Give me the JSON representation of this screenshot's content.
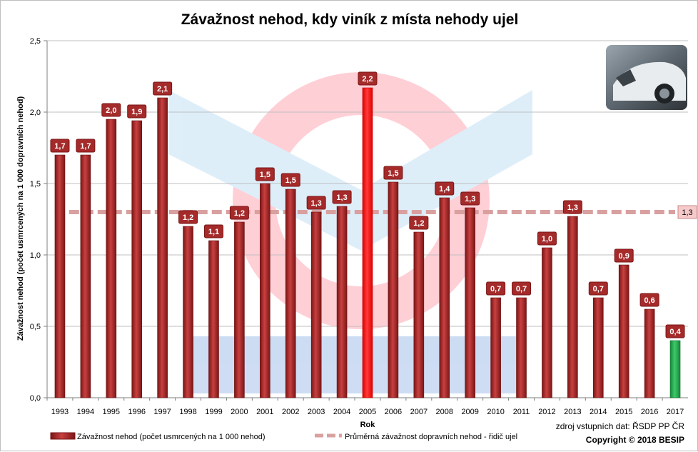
{
  "chart_data": {
    "type": "bar",
    "title": "Závažnost nehod, kdy viník z místa nehody ujel",
    "xlabel": "Rok",
    "ylabel": "Závažnost  nehod  (počet usmrcených na 1 000 dopravních  nehod)",
    "ylim": [
      0,
      2.5
    ],
    "yticks": [
      "0,0",
      "0,5",
      "1,0",
      "1,5",
      "2,0",
      "2,5"
    ],
    "grid": true,
    "categories": [
      "1993",
      "1994",
      "1995",
      "1996",
      "1997",
      "1998",
      "1999",
      "2000",
      "2001",
      "2002",
      "2003",
      "2004",
      "2005",
      "2006",
      "2007",
      "2008",
      "2009",
      "2010",
      "2011",
      "2012",
      "2013",
      "2014",
      "2015",
      "2016",
      "2017"
    ],
    "series": [
      {
        "name": "Závažnost nehod (počet usmrcených na 1 000 nehod)",
        "values": [
          1.7,
          1.7,
          1.95,
          1.94,
          2.1,
          1.2,
          1.1,
          1.23,
          1.5,
          1.46,
          1.3,
          1.34,
          2.17,
          1.51,
          1.16,
          1.4,
          1.33,
          0.7,
          0.7,
          1.05,
          1.27,
          0.7,
          0.93,
          0.62,
          0.4
        ],
        "data_labels": [
          "1,7",
          "1,7",
          "2,0",
          "1,9",
          "2,1",
          "1,2",
          "1,1",
          "1,2",
          "1,5",
          "1,5",
          "1,3",
          "1,3",
          "2,2",
          "1,5",
          "1,2",
          "1,4",
          "1,3",
          "0,7",
          "0,7",
          "1,0",
          "1,3",
          "0,7",
          "0,9",
          "0,6",
          "0,4"
        ],
        "color": "#a52a2a"
      }
    ],
    "highlight": {
      "max_index": 12,
      "max_color": "#ff0000",
      "min_index": 24,
      "min_color": "#22a84a"
    },
    "average": {
      "name": "Průměrná závažnost dopravních nehod - řidič ujel",
      "value": 1.3,
      "label": "1,3",
      "color": "#d9a0a0"
    },
    "legend_position": "bottom",
    "source": "zdroj vstupních dat: ŘSDP PP ČR",
    "copyright": "Copyright © 2018  BESIP"
  }
}
